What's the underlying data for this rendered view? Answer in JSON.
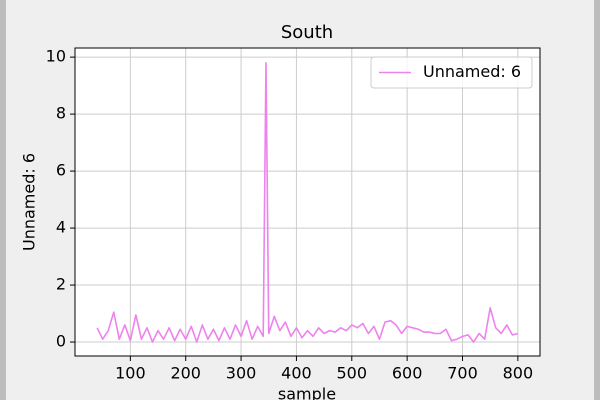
{
  "chart_data": {
    "type": "line",
    "title": "South",
    "xlabel": "sample",
    "ylabel": "Unnamed: 6",
    "x": [
      40,
      50,
      60,
      70,
      80,
      90,
      100,
      110,
      120,
      130,
      140,
      150,
      160,
      170,
      180,
      190,
      200,
      210,
      220,
      230,
      240,
      250,
      260,
      270,
      280,
      290,
      300,
      310,
      320,
      330,
      340,
      345,
      350,
      360,
      370,
      380,
      390,
      400,
      410,
      420,
      430,
      440,
      450,
      460,
      470,
      480,
      490,
      500,
      510,
      520,
      530,
      540,
      550,
      560,
      570,
      580,
      590,
      600,
      610,
      620,
      630,
      640,
      650,
      660,
      670,
      680,
      690,
      700,
      710,
      720,
      730,
      740,
      750,
      760,
      770,
      780,
      790,
      800
    ],
    "series": [
      {
        "name": "Unnamed: 6",
        "color": "#ee82ee",
        "values": [
          0.5,
          0.1,
          0.4,
          1.05,
          0.1,
          0.6,
          0.05,
          0.95,
          0.1,
          0.5,
          0.0,
          0.4,
          0.1,
          0.5,
          0.05,
          0.45,
          0.1,
          0.55,
          0.0,
          0.6,
          0.1,
          0.45,
          0.05,
          0.5,
          0.1,
          0.6,
          0.2,
          0.75,
          0.1,
          0.55,
          0.2,
          9.8,
          0.3,
          0.9,
          0.4,
          0.7,
          0.2,
          0.5,
          0.15,
          0.4,
          0.2,
          0.5,
          0.3,
          0.4,
          0.35,
          0.5,
          0.4,
          0.6,
          0.5,
          0.65,
          0.3,
          0.55,
          0.1,
          0.7,
          0.75,
          0.6,
          0.3,
          0.55,
          0.5,
          0.45,
          0.35,
          0.35,
          0.3,
          0.3,
          0.45,
          0.05,
          0.1,
          0.2,
          0.25,
          0.0,
          0.3,
          0.1,
          1.2,
          0.5,
          0.3,
          0.6,
          0.25,
          0.3
        ]
      }
    ],
    "xlim": [
      0,
      840
    ],
    "ylim": [
      -0.49,
      10.32
    ],
    "xticks": [
      100,
      200,
      300,
      400,
      500,
      600,
      700,
      800
    ],
    "yticks": [
      0,
      2,
      4,
      6,
      8,
      10
    ],
    "grid": true,
    "legend": "upper right"
  }
}
